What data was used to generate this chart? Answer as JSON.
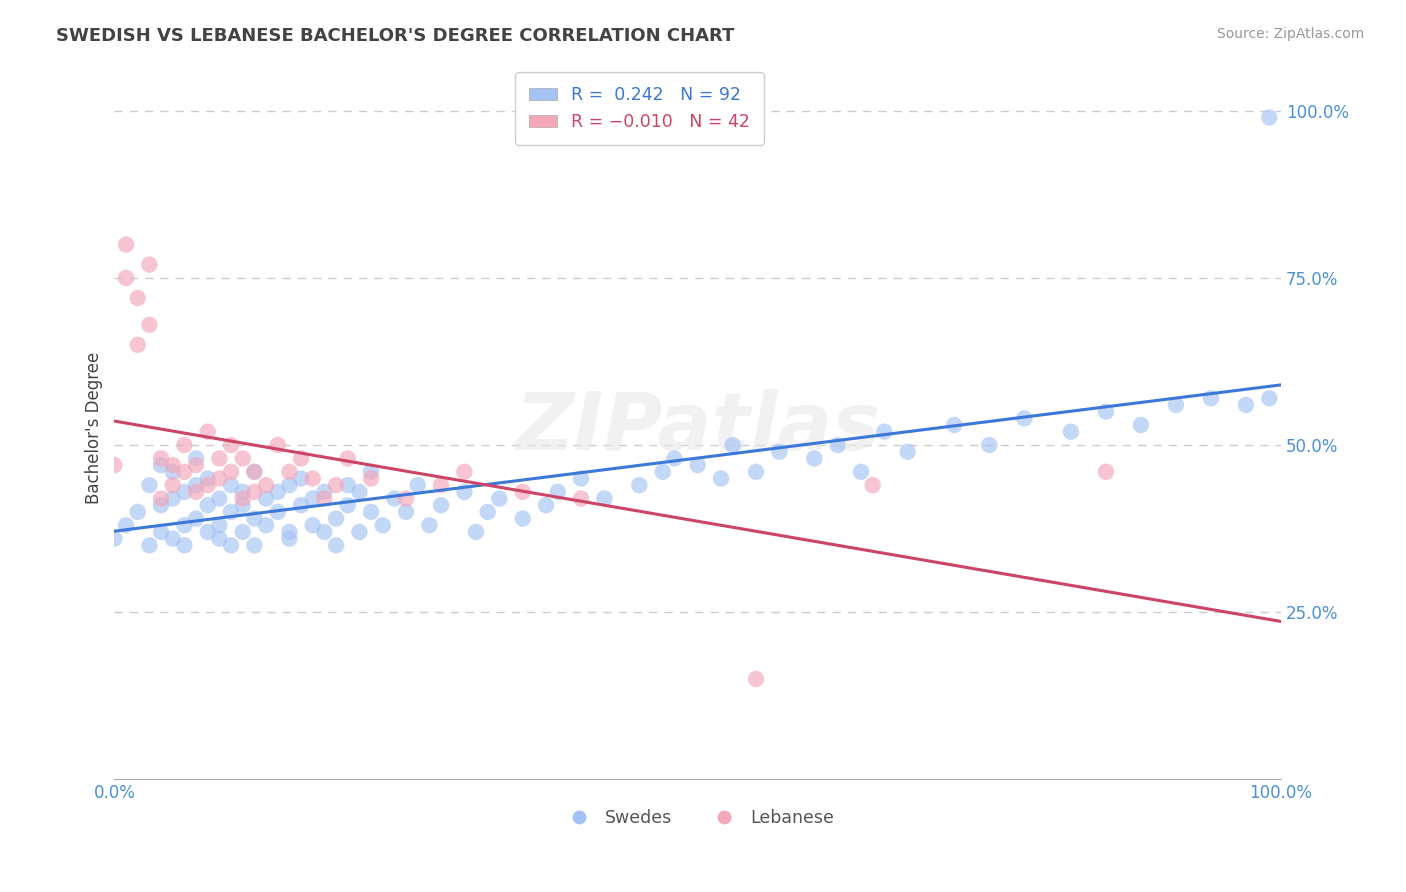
{
  "title": "SWEDISH VS LEBANESE BACHELOR'S DEGREE CORRELATION CHART",
  "source": "Source: ZipAtlas.com",
  "ylabel": "Bachelor's Degree",
  "r_swedish": 0.242,
  "n_swedish": 92,
  "r_lebanese": -0.01,
  "n_lebanese": 42,
  "blue_color": "#a4c2f4",
  "pink_color": "#f4a7b9",
  "blue_line_color": "#3c78d8",
  "pink_line_color": "#cc4466",
  "title_color": "#434343",
  "source_color": "#999999",
  "tick_color": "#4a90d9",
  "grid_color": "#cccccc",
  "watermark": "ZIPatlas",
  "swedish_x": [
    0,
    1,
    2,
    3,
    3,
    4,
    4,
    4,
    5,
    5,
    5,
    6,
    6,
    6,
    7,
    7,
    7,
    8,
    8,
    8,
    9,
    9,
    9,
    10,
    10,
    10,
    11,
    11,
    11,
    12,
    12,
    12,
    13,
    13,
    14,
    14,
    15,
    15,
    15,
    16,
    16,
    17,
    17,
    18,
    18,
    19,
    19,
    20,
    20,
    21,
    21,
    22,
    22,
    23,
    24,
    25,
    26,
    27,
    28,
    30,
    31,
    32,
    33,
    35,
    37,
    38,
    40,
    42,
    45,
    47,
    48,
    50,
    52,
    53,
    55,
    57,
    60,
    62,
    64,
    66,
    68,
    72,
    75,
    78,
    82,
    85,
    88,
    91,
    94,
    97,
    99,
    99
  ],
  "swedish_y": [
    36,
    38,
    40,
    35,
    44,
    37,
    41,
    47,
    36,
    42,
    46,
    38,
    43,
    35,
    39,
    44,
    48,
    37,
    41,
    45,
    36,
    42,
    38,
    40,
    44,
    35,
    43,
    37,
    41,
    39,
    46,
    35,
    42,
    38,
    40,
    43,
    37,
    44,
    36,
    41,
    45,
    38,
    42,
    37,
    43,
    39,
    35,
    41,
    44,
    37,
    43,
    40,
    46,
    38,
    42,
    40,
    44,
    38,
    41,
    43,
    37,
    40,
    42,
    39,
    41,
    43,
    45,
    42,
    44,
    46,
    48,
    47,
    45,
    50,
    46,
    49,
    48,
    50,
    46,
    52,
    49,
    53,
    50,
    54,
    52,
    55,
    53,
    56,
    57,
    56,
    57,
    99
  ],
  "lebanese_x": [
    0,
    1,
    1,
    2,
    2,
    3,
    3,
    4,
    4,
    5,
    5,
    6,
    6,
    7,
    7,
    8,
    8,
    9,
    9,
    10,
    10,
    11,
    11,
    12,
    12,
    13,
    14,
    15,
    16,
    17,
    18,
    19,
    20,
    22,
    25,
    28,
    30,
    35,
    40,
    55,
    65,
    85
  ],
  "lebanese_y": [
    47,
    80,
    75,
    72,
    65,
    68,
    77,
    48,
    42,
    47,
    44,
    50,
    46,
    43,
    47,
    52,
    44,
    48,
    45,
    50,
    46,
    42,
    48,
    43,
    46,
    44,
    50,
    46,
    48,
    45,
    42,
    44,
    48,
    45,
    42,
    44,
    46,
    43,
    42,
    15,
    44,
    46
  ]
}
